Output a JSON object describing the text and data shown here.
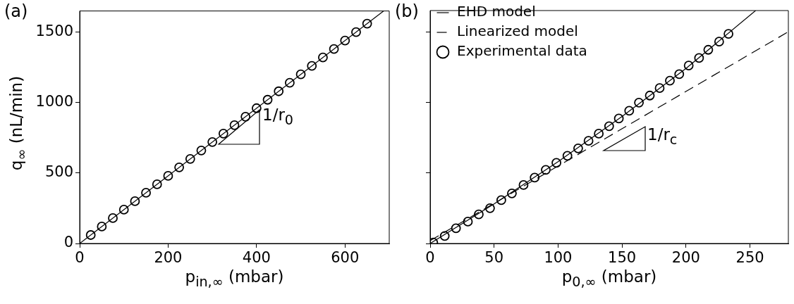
{
  "chart_data": [
    {
      "type": "scatter",
      "title": "(a)",
      "xlabel": "p$_{in,∞}$ (mbar)",
      "ylabel": "q$_{∞}$ (nL/min)",
      "xlim": [
        0,
        700
      ],
      "xticks": [
        0,
        200,
        400,
        600
      ],
      "ylim": [
        0,
        1650
      ],
      "yticks": [
        0,
        500,
        1000,
        1500
      ],
      "grid": false,
      "legend": false,
      "annotations": [
        "1/r$_{0}$"
      ],
      "series": [
        {
          "type": "line",
          "color": "#000000",
          "marker": "none",
          "line_style": "solid",
          "x": [
            0,
            687.5
          ],
          "values": [
            0,
            1650
          ]
        },
        {
          "type": "scatter",
          "color": "#000000",
          "marker": "circle",
          "x": [
            25,
            50,
            75,
            100,
            125,
            150,
            175,
            200,
            225,
            250,
            275,
            300,
            325,
            350,
            375,
            400,
            425,
            450,
            475,
            500,
            525,
            550,
            575,
            600,
            625,
            650
          ],
          "values": [
            60,
            120,
            180,
            240,
            300,
            360,
            420,
            480,
            540,
            600,
            660,
            720,
            780,
            840,
            900,
            960,
            1020,
            1080,
            1140,
            1200,
            1260,
            1320,
            1380,
            1440,
            1500,
            1560
          ]
        }
      ]
    },
    {
      "type": "scatter",
      "title": "(b)",
      "xlabel": "p$_{0,∞}$ (mbar)",
      "xlim": [
        0,
        280
      ],
      "xticks": [
        0,
        50,
        100,
        150,
        200,
        250
      ],
      "ylim": [
        0,
        1650
      ],
      "yticks": [
        0,
        500,
        1000,
        1500
      ],
      "tick_labels": "x",
      "grid": false,
      "legend": "top left",
      "annotations": [
        "1/r$_{c}$"
      ],
      "series": [
        {
          "type": "line",
          "name": "EHD model",
          "color": "#000000",
          "marker": "none",
          "line_style": "solid",
          "x": [
            0,
            50,
            100,
            150,
            200,
            254.4
          ],
          "values": [
            0,
            280,
            580,
            900,
            1240,
            1650
          ]
        },
        {
          "type": "line",
          "name": "Linearized model",
          "color": "#000000",
          "marker": "none",
          "line_style": "dashed",
          "x": [
            0,
            280
          ],
          "values": [
            20,
            1500
          ]
        },
        {
          "type": "scatter",
          "name": "Experimental data",
          "color": "#000000",
          "marker": "circle",
          "x": [
            2.4,
            11.4,
            20.2,
            29.5,
            38,
            46.8,
            55.6,
            63.9,
            73,
            81.7,
            90.4,
            98.7,
            107.3,
            115.7,
            123.8,
            131.8,
            139.9,
            147.5,
            155.6,
            163.2,
            171.7,
            179.4,
            187.4,
            194.7,
            202.1,
            210.2,
            217.4,
            225.9,
            233.2
          ],
          "values": [
            7,
            53,
            108,
            155,
            206,
            250,
            307,
            355,
            414,
            467,
            522,
            571,
            621,
            674,
            727,
            778,
            831,
            885,
            940,
            998,
            1048,
            1101,
            1153,
            1199,
            1261,
            1314,
            1372,
            1430,
            1485
          ]
        }
      ]
    }
  ]
}
